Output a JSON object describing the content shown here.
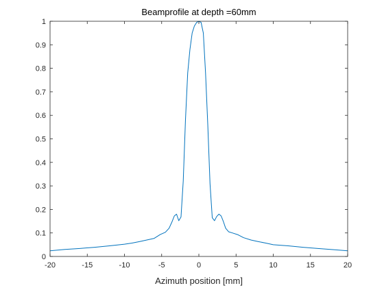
{
  "chart_data": {
    "type": "line",
    "title": "Beamprofile at depth =60mm",
    "xlabel": "Azimuth position [mm]",
    "ylabel": "",
    "xlim": [
      -20,
      20
    ],
    "ylim": [
      0,
      1
    ],
    "xticks": [
      -20,
      -15,
      -10,
      -5,
      0,
      5,
      10,
      15,
      20
    ],
    "yticks": [
      0,
      0.1,
      0.2,
      0.3,
      0.4,
      0.5,
      0.6,
      0.7,
      0.8,
      0.9,
      1
    ],
    "grid": false,
    "series": [
      {
        "color": "#0072BD",
        "x": [
          -20,
          -18,
          -16,
          -14,
          -12,
          -10,
          -9,
          -8,
          -7,
          -6,
          -5.2,
          -4.5,
          -4,
          -3.6,
          -3.3,
          -3.0,
          -2.7,
          -2.4,
          -2.1,
          -1.8,
          -1.5,
          -1.2,
          -0.9,
          -0.6,
          -0.3,
          0,
          0.3,
          0.6,
          0.9,
          1.2,
          1.5,
          1.8,
          2.1,
          2.4,
          2.7,
          3.0,
          3.3,
          3.6,
          4.0,
          4.5,
          5.2,
          6,
          7,
          8,
          9,
          10,
          12,
          14,
          16,
          18,
          20
        ],
        "y": [
          0.024,
          0.03,
          0.034,
          0.039,
          0.045,
          0.052,
          0.057,
          0.063,
          0.07,
          0.077,
          0.093,
          0.103,
          0.12,
          0.148,
          0.172,
          0.18,
          0.152,
          0.168,
          0.32,
          0.58,
          0.78,
          0.88,
          0.95,
          0.98,
          0.995,
          1.0,
          0.995,
          0.95,
          0.78,
          0.56,
          0.31,
          0.165,
          0.152,
          0.17,
          0.18,
          0.172,
          0.148,
          0.12,
          0.105,
          0.1,
          0.093,
          0.08,
          0.07,
          0.063,
          0.057,
          0.05,
          0.045,
          0.039,
          0.034,
          0.029,
          0.024
        ]
      }
    ]
  }
}
